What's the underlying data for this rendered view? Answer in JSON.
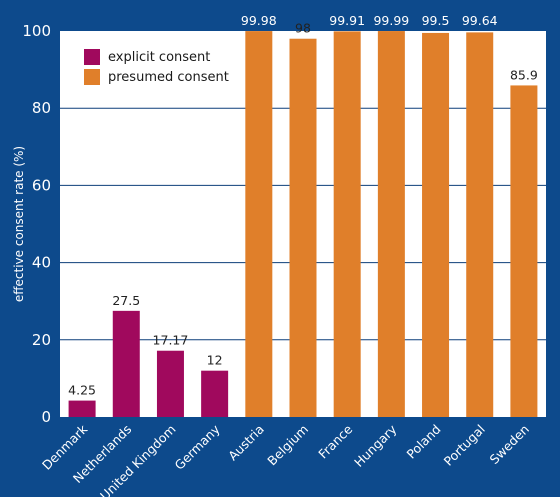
{
  "chart_data": {
    "type": "bar",
    "title": "",
    "xlabel": "",
    "ylabel": "effective consent rate (%)",
    "ylim": [
      0,
      100
    ],
    "yticks": [
      0,
      20,
      40,
      60,
      80,
      100
    ],
    "grid": true,
    "legend_position": "top-left",
    "categories": [
      "Denmark",
      "Netherlands",
      "United Kingdom",
      "Germany",
      "Austria",
      "Belgium",
      "France",
      "Hungary",
      "Poland",
      "Portugal",
      "Sweden"
    ],
    "values": [
      4.25,
      27.5,
      17.17,
      12,
      99.98,
      98,
      99.91,
      99.99,
      99.5,
      99.64,
      85.9
    ],
    "value_labels": [
      "4.25",
      "27.5",
      "17.17",
      "12",
      "99.98",
      "98",
      "99.91",
      "99.99",
      "99.5",
      "99.64",
      "85.9"
    ],
    "bar_group": [
      "explicit",
      "explicit",
      "explicit",
      "explicit",
      "presumed",
      "presumed",
      "presumed",
      "presumed",
      "presumed",
      "presumed",
      "presumed"
    ],
    "series": [
      {
        "key": "explicit",
        "name": "explicit consent",
        "color": "#a0095d"
      },
      {
        "key": "presumed",
        "name": "presumed consent",
        "color": "#e07f2a"
      }
    ]
  },
  "colors": {
    "background": "#0d4a8c",
    "plot_background": "#ffffff",
    "gridline": "#0d3f7a"
  }
}
